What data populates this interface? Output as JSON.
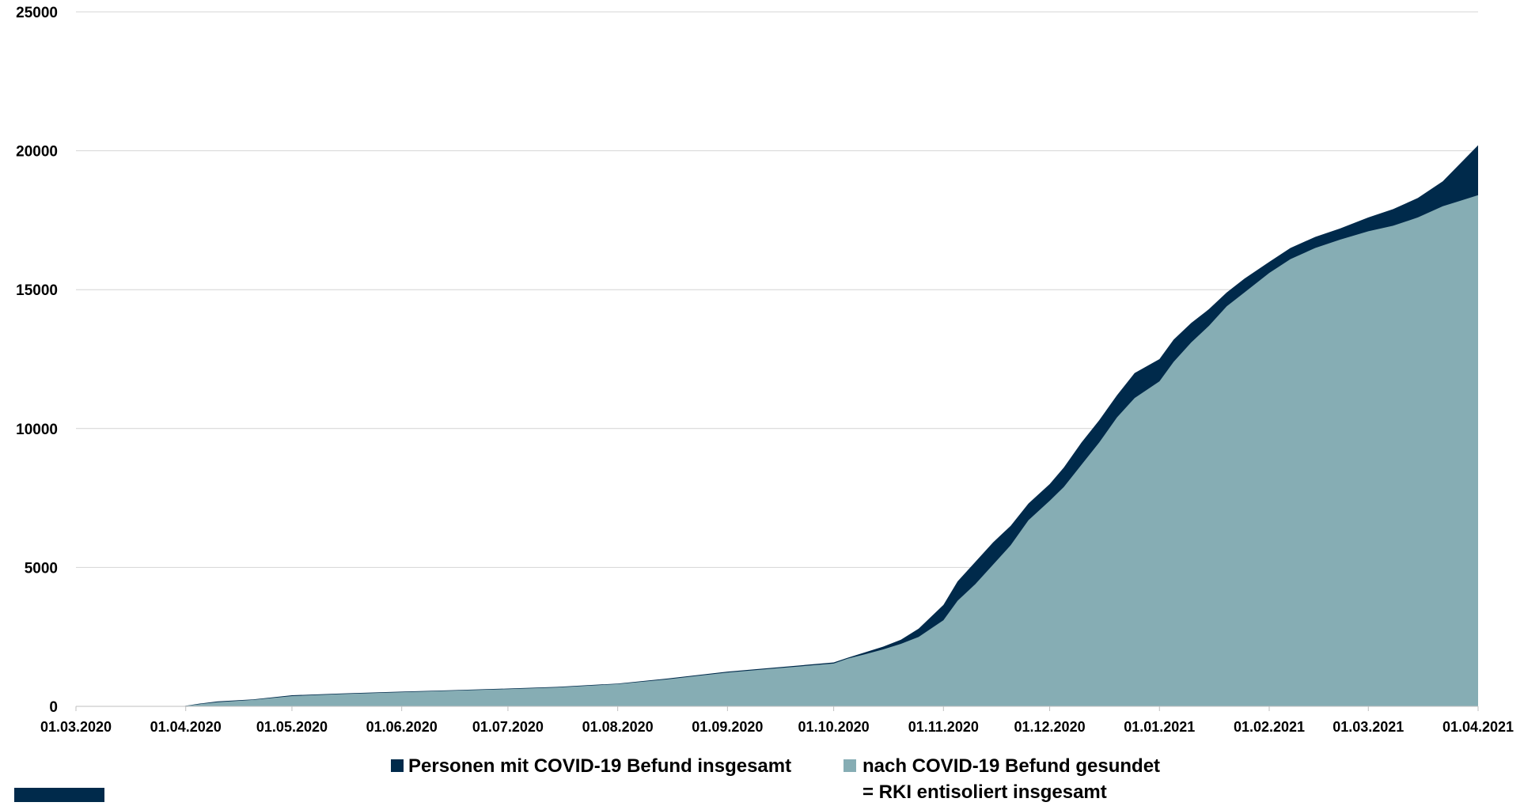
{
  "chart_data": {
    "type": "area",
    "stacked": false,
    "x_type": "date",
    "xlim": [
      "2020-03-01",
      "2021-04-01"
    ],
    "ylim": [
      0,
      25000
    ],
    "yticks": [
      "0",
      "5000",
      "10000",
      "15000",
      "20000",
      "25000"
    ],
    "xticks": [
      {
        "date": "2020-03-01",
        "label": "01.03.2020"
      },
      {
        "date": "2020-04-01",
        "label": "01.04.2020"
      },
      {
        "date": "2020-05-01",
        "label": "01.05.2020"
      },
      {
        "date": "2020-06-01",
        "label": "01.06.2020"
      },
      {
        "date": "2020-07-01",
        "label": "01.07.2020"
      },
      {
        "date": "2020-08-01",
        "label": "01.08.2020"
      },
      {
        "date": "2020-09-01",
        "label": "01.09.2020"
      },
      {
        "date": "2020-10-01",
        "label": "01.10.2020"
      },
      {
        "date": "2020-11-01",
        "label": "01.11.2020"
      },
      {
        "date": "2020-12-01",
        "label": "01.12.2020"
      },
      {
        "date": "2021-01-01",
        "label": "01.01.2021"
      },
      {
        "date": "2021-02-01",
        "label": "01.02.2021"
      },
      {
        "date": "2021-03-01",
        "label": "01.03.2021"
      },
      {
        "date": "2021-04-01",
        "label": "01.04.2021"
      }
    ],
    "grid": true,
    "legend_position": "bottom",
    "x": [
      "2020-03-01",
      "2020-03-31",
      "2020-04-05",
      "2020-04-10",
      "2020-04-20",
      "2020-05-01",
      "2020-05-15",
      "2020-06-01",
      "2020-06-15",
      "2020-07-01",
      "2020-07-15",
      "2020-08-01",
      "2020-08-15",
      "2020-09-01",
      "2020-09-15",
      "2020-10-01",
      "2020-10-05",
      "2020-10-10",
      "2020-10-15",
      "2020-10-20",
      "2020-10-25",
      "2020-11-01",
      "2020-11-05",
      "2020-11-10",
      "2020-11-15",
      "2020-11-20",
      "2020-11-25",
      "2020-12-01",
      "2020-12-05",
      "2020-12-10",
      "2020-12-15",
      "2020-12-20",
      "2020-12-25",
      "2021-01-01",
      "2021-01-05",
      "2021-01-10",
      "2021-01-15",
      "2021-01-20",
      "2021-01-25",
      "2021-02-01",
      "2021-02-07",
      "2021-02-14",
      "2021-02-21",
      "2021-03-01",
      "2021-03-08",
      "2021-03-15",
      "2021-03-22",
      "2021-04-01"
    ],
    "series": [
      {
        "name": "Personen mit COVID-19 Befund insgesamt",
        "color": "#002a4b",
        "values": [
          0,
          0,
          100,
          180,
          250,
          400,
          460,
          530,
          580,
          640,
          700,
          820,
          1000,
          1250,
          1400,
          1580,
          1750,
          1950,
          2150,
          2400,
          2800,
          3650,
          4500,
          5200,
          5900,
          6500,
          7300,
          8000,
          8600,
          9500,
          10300,
          11200,
          12000,
          12500,
          13200,
          13800,
          14300,
          14900,
          15400,
          16000,
          16500,
          16900,
          17200,
          17600,
          17900,
          18300,
          18900,
          20200
        ]
      },
      {
        "name": "nach COVID-19 Befund gesundet\n= RKI entisoliert insgesamt",
        "color": "#86adb4",
        "values": [
          0,
          0,
          80,
          150,
          230,
          370,
          440,
          510,
          560,
          620,
          680,
          800,
          970,
          1220,
          1370,
          1540,
          1720,
          1880,
          2050,
          2250,
          2500,
          3100,
          3800,
          4400,
          5100,
          5800,
          6700,
          7400,
          7900,
          8700,
          9500,
          10400,
          11100,
          11700,
          12400,
          13100,
          13700,
          14400,
          14900,
          15600,
          16100,
          16500,
          16800,
          17100,
          17300,
          17600,
          18000,
          18400
        ]
      }
    ]
  },
  "legend": {
    "items": [
      {
        "label": "Personen mit COVID-19 Befund insgesamt",
        "color": "#002a4b"
      },
      {
        "label_line1": "nach COVID-19 Befund gesundet",
        "label_line2": "= RKI entisoliert insgesamt",
        "color": "#86adb4"
      }
    ]
  },
  "decor": {
    "corner_color": "#002a4b"
  }
}
